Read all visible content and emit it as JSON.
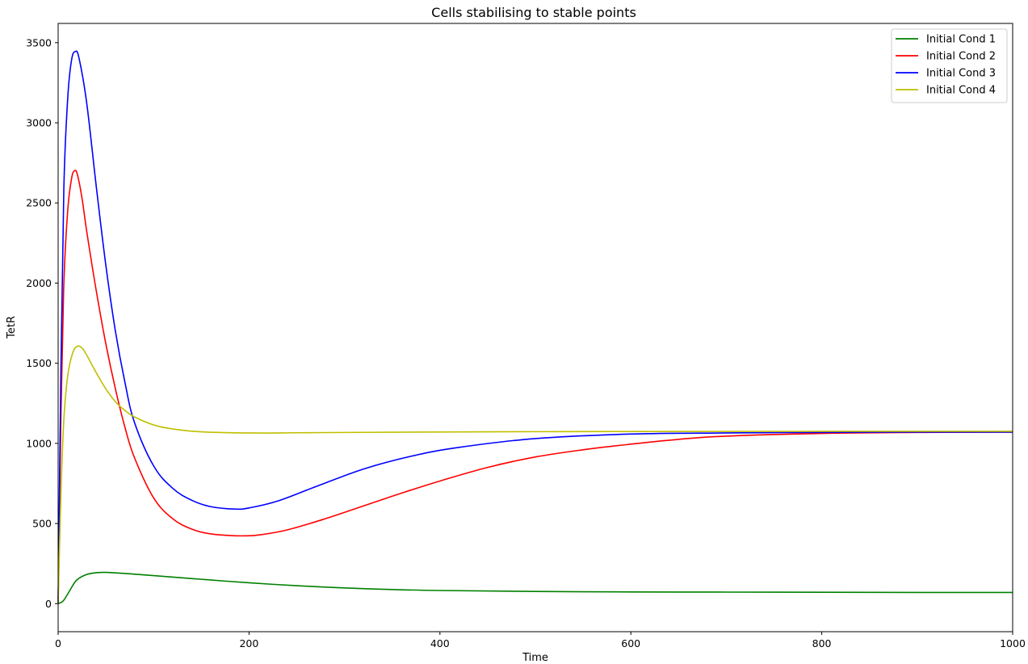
{
  "chart_data": {
    "type": "line",
    "title": "Cells stabilising to stable points",
    "xlabel": "Time",
    "ylabel": "TetR",
    "xlim": [
      0,
      1000
    ],
    "ylim": [
      -175,
      3620
    ],
    "xticks": [
      0,
      200,
      400,
      600,
      800,
      1000
    ],
    "yticks": [
      0,
      500,
      1000,
      1500,
      2000,
      2500,
      3000,
      3500
    ],
    "grid": false,
    "legend_position": "top-right",
    "series": [
      {
        "name": "Initial Cond 1",
        "color": "#008000",
        "x": [
          0,
          5,
          10,
          15,
          20,
          30,
          40,
          50,
          60,
          80,
          100,
          150,
          200,
          250,
          300,
          350,
          400,
          500,
          600,
          700,
          800,
          900,
          1000
        ],
        "y": [
          0,
          15,
          60,
          110,
          150,
          182,
          193,
          195,
          192,
          184,
          175,
          152,
          130,
          112,
          98,
          88,
          82,
          76,
          73,
          72,
          71,
          70,
          70
        ]
      },
      {
        "name": "Initial Cond 2",
        "color": "#ff0000",
        "x": [
          0,
          3,
          6,
          10,
          14,
          17,
          20,
          25,
          30,
          40,
          50,
          60,
          70,
          80,
          100,
          120,
          140,
          160,
          180,
          195,
          210,
          240,
          280,
          320,
          360,
          400,
          450,
          500,
          550,
          600,
          650,
          700,
          800,
          900,
          1000
        ],
        "y": [
          0,
          1200,
          2000,
          2450,
          2650,
          2700,
          2680,
          2530,
          2320,
          1950,
          1620,
          1340,
          1100,
          910,
          660,
          530,
          465,
          435,
          425,
          423,
          428,
          460,
          530,
          610,
          690,
          765,
          850,
          915,
          960,
          995,
          1025,
          1045,
          1062,
          1068,
          1070
        ]
      },
      {
        "name": "Initial Cond 3",
        "color": "#0000ff",
        "x": [
          0,
          3,
          6,
          10,
          14,
          18,
          22,
          30,
          40,
          50,
          60,
          70,
          80,
          100,
          120,
          140,
          160,
          185,
          200,
          230,
          270,
          320,
          370,
          420,
          500,
          600,
          700,
          800,
          900,
          1000
        ],
        "y": [
          0,
          1500,
          2600,
          3150,
          3390,
          3445,
          3400,
          3120,
          2600,
          2110,
          1700,
          1380,
          1130,
          860,
          720,
          645,
          605,
          590,
          597,
          640,
          730,
          840,
          920,
          975,
          1030,
          1058,
          1065,
          1068,
          1070,
          1070
        ]
      },
      {
        "name": "Initial Cond 4",
        "color": "#bfbf00",
        "x": [
          0,
          3,
          6,
          10,
          15,
          20,
          25,
          30,
          40,
          50,
          60,
          70,
          80,
          100,
          120,
          150,
          200,
          250,
          300,
          400,
          500,
          600,
          800,
          1000
        ],
        "y": [
          0,
          700,
          1150,
          1420,
          1560,
          1605,
          1595,
          1550,
          1440,
          1340,
          1260,
          1205,
          1165,
          1115,
          1090,
          1072,
          1065,
          1066,
          1068,
          1071,
          1073,
          1074,
          1075,
          1075
        ]
      }
    ]
  }
}
